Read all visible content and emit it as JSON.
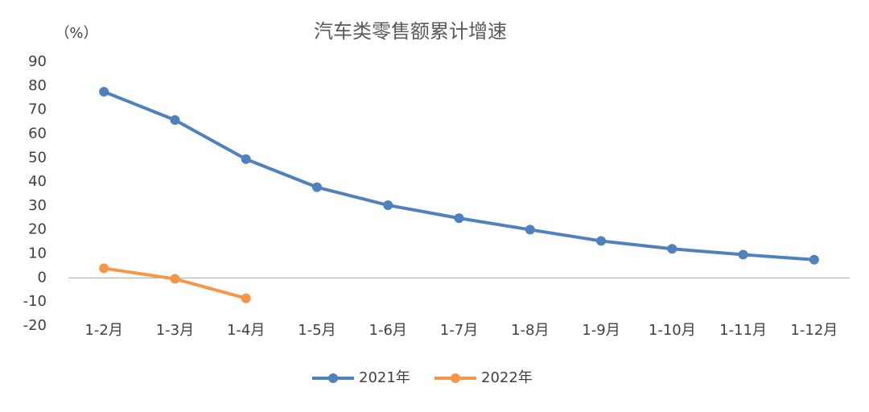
{
  "chart_data": {
    "type": "line",
    "title": "汽车类零售额累计增速",
    "y_label": "（%）",
    "categories": [
      "1-2月",
      "1-3月",
      "1-4月",
      "1-5月",
      "1-6月",
      "1-7月",
      "1-8月",
      "1-9月",
      "1-10月",
      "1-11月",
      "1-12月"
    ],
    "series": [
      {
        "name": "2021年",
        "color": "#4f81bd",
        "values": [
          77.6,
          65.8,
          49.5,
          37.8,
          30.3,
          24.9,
          20.1,
          15.4,
          12.1,
          9.7,
          7.6
        ]
      },
      {
        "name": "2022年",
        "color": "#f79646",
        "values": [
          4.0,
          -0.4,
          -8.5,
          null,
          null,
          null,
          null,
          null,
          null,
          null,
          null
        ]
      }
    ],
    "ylim": [
      -20,
      90
    ],
    "yticks": [
      -20,
      -10,
      0,
      10,
      20,
      30,
      40,
      50,
      60,
      70,
      80,
      90
    ],
    "grid": false,
    "legend": "bottom"
  }
}
